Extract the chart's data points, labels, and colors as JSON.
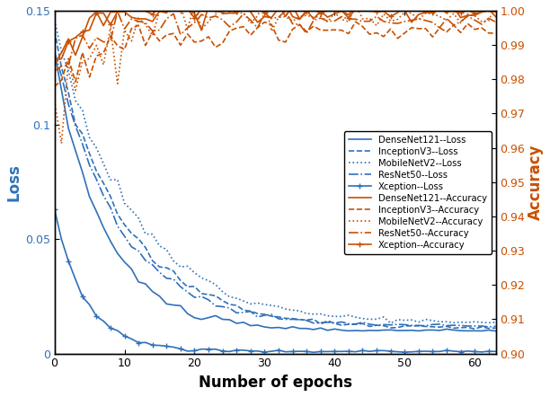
{
  "blue_color": "#3070b8",
  "orange_color": "#c85000",
  "xlabel": "Number of epochs",
  "ylabel_left": "Loss",
  "ylabel_right": "Accuracy",
  "xlim": [
    0,
    63
  ],
  "ylim_loss": [
    0,
    0.15
  ],
  "ylim_acc": [
    0.9,
    1.0
  ],
  "yticks_loss": [
    0,
    0.05,
    0.1,
    0.15
  ],
  "yticks_acc": [
    0.9,
    0.91,
    0.92,
    0.93,
    0.94,
    0.95,
    0.96,
    0.97,
    0.98,
    0.99,
    1.0
  ],
  "xticks": [
    0,
    10,
    20,
    30,
    40,
    50,
    60
  ],
  "n_epochs": 63,
  "legend_entries": [
    "DenseNet121--Loss",
    "InceptionV3--Loss",
    "MobileNetV2--Loss",
    "ResNet50--Loss",
    "Xception--Loss",
    "DenseNet121--Accuracy",
    "InceptionV3--Accuracy",
    "MobileNetV2--Accuracy",
    "ResNet50--Accuracy",
    "Xception--Accuracy"
  ]
}
